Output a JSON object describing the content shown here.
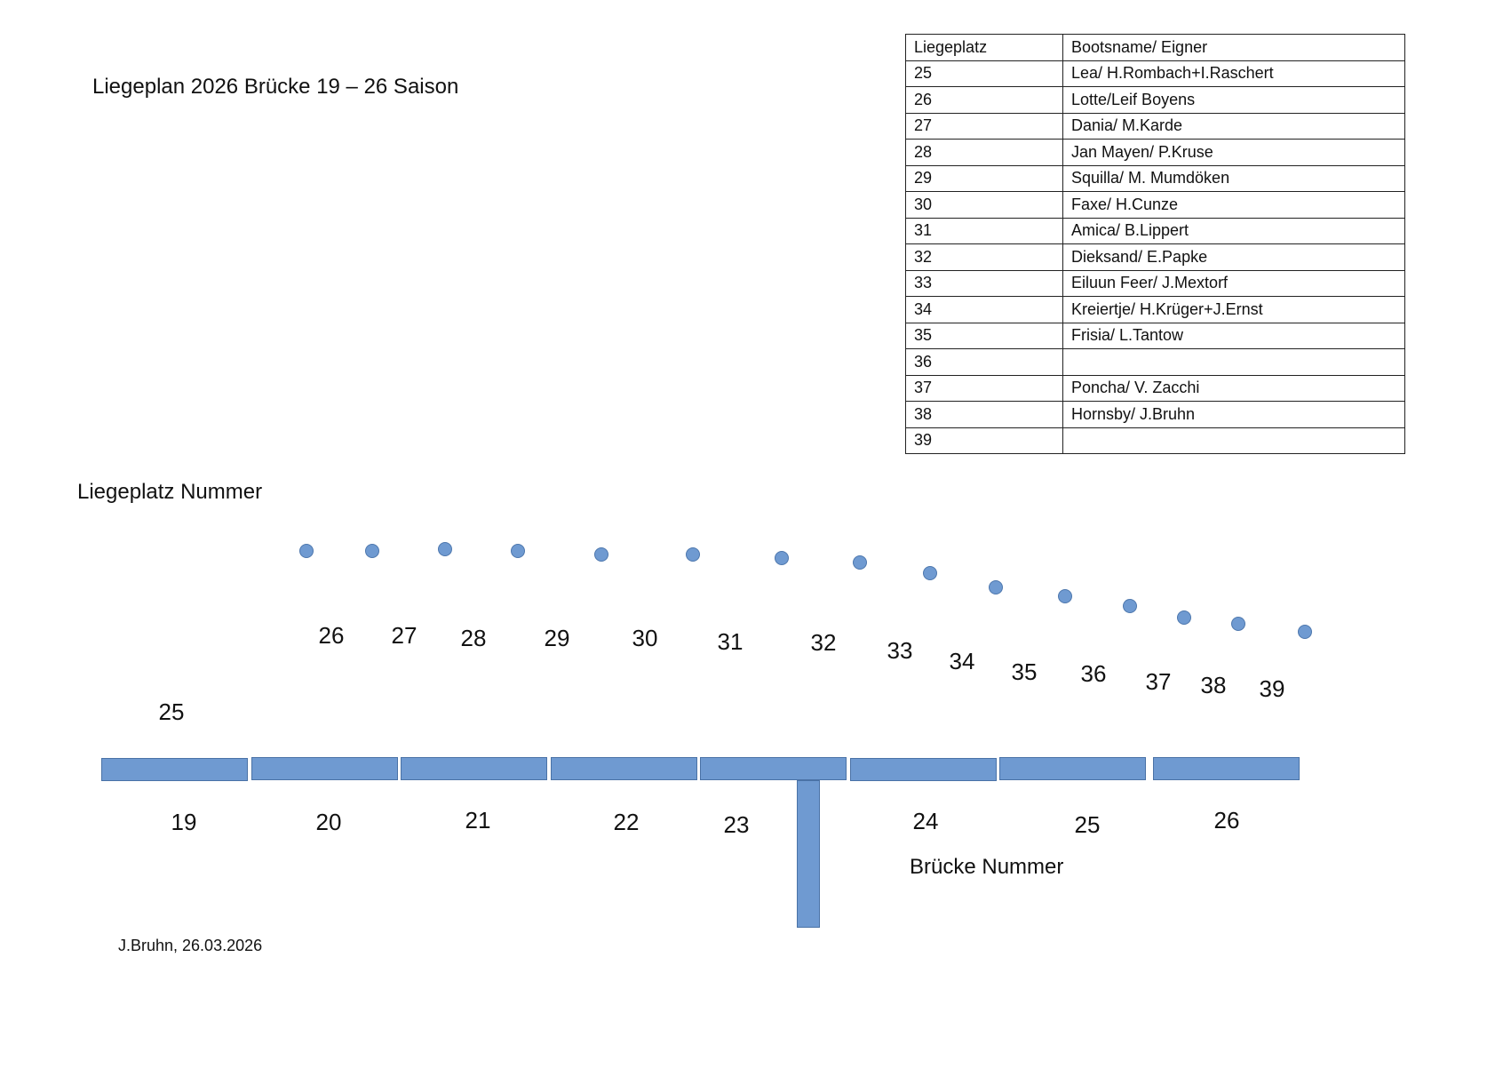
{
  "document": {
    "title": "Liegeplan 2026 Brücke 19 – 26 Saison",
    "berth_label": "Liegeplatz Nummer",
    "bridge_label": "Brücke Nummer",
    "footer": "J.Bruhn, 26.03.2026"
  },
  "table": {
    "headers": [
      "Liegeplatz",
      "Bootsname/ Eigner"
    ],
    "rows": [
      [
        "25",
        "Lea/ H.Rombach+I.Raschert"
      ],
      [
        "26",
        "Lotte/Leif Boyens"
      ],
      [
        "27",
        "Dania/ M.Karde"
      ],
      [
        "28",
        "Jan Mayen/ P.Kruse"
      ],
      [
        "29",
        "Squilla/ M. Mumdöken"
      ],
      [
        "30",
        "Faxe/ H.Cunze"
      ],
      [
        "31",
        "Amica/ B.Lippert"
      ],
      [
        "32",
        "Dieksand/ E.Papke"
      ],
      [
        "33",
        "Eiluun Feer/ J.Mextorf"
      ],
      [
        "34",
        "Kreiertje/ H.Krüger+J.Ernst"
      ],
      [
        "35",
        "Frisia/ L.Tantow"
      ],
      [
        "36",
        ""
      ],
      [
        "37",
        "Poncha/ V. Zacchi"
      ],
      [
        "38",
        "Hornsby/ J.Bruhn"
      ],
      [
        "39",
        ""
      ]
    ]
  },
  "diagram": {
    "berth_numbers": [
      "26",
      "27",
      "28",
      "29",
      "30",
      "31",
      "32",
      "33",
      "34",
      "35",
      "36",
      "37",
      "38",
      "39"
    ],
    "extra_berth_number": "25",
    "bridge_numbers": [
      "19",
      "20",
      "21",
      "22",
      "23",
      "24",
      "25",
      "26"
    ],
    "colors": {
      "shape_fill": "#6f9ad1",
      "shape_stroke": "#4a72a6"
    }
  }
}
